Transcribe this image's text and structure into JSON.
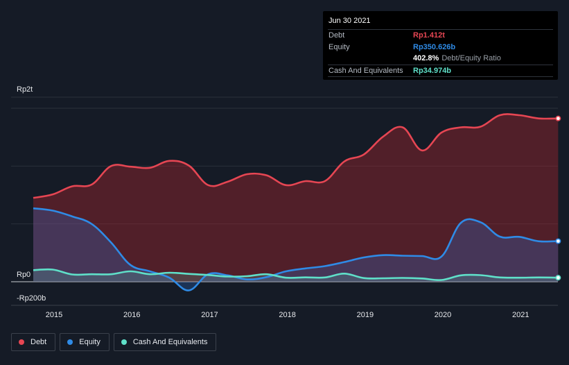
{
  "colors": {
    "debt": "#e64653",
    "equity": "#2f8be6",
    "cash": "#5fe0c9",
    "grid": "#2a303b",
    "tick_text": "#e8eaed"
  },
  "tooltip": {
    "date": "Jun 30 2021",
    "rows": [
      {
        "label": "Debt",
        "value": "Rp1.412t",
        "color": "#e64653"
      },
      {
        "label": "Equity",
        "value": "Rp350.626b",
        "color": "#2f8be6"
      },
      {
        "label": "",
        "value": "402.8%",
        "suffix": "Debt/Equity Ratio",
        "color": "#ffffff"
      },
      {
        "label": "Cash And Equivalents",
        "value": "Rp34.974b",
        "color": "#5fe0c9"
      }
    ]
  },
  "legend": [
    {
      "label": "Debt",
      "color": "#e64653"
    },
    {
      "label": "Equity",
      "color": "#2f8be6"
    },
    {
      "label": "Cash And Equivalents",
      "color": "#5fe0c9"
    }
  ],
  "chart_data": {
    "type": "area",
    "title": "",
    "xlabel": "",
    "ylabel": "",
    "xlim": [
      2014.5,
      2021.5
    ],
    "ylim": [
      -200,
      1600
    ],
    "x_ticks": [
      2015,
      2016,
      2017,
      2018,
      2019,
      2020,
      2021
    ],
    "x_tick_labels": [
      "2015",
      "2016",
      "2017",
      "2018",
      "2019",
      "2020",
      "2021"
    ],
    "y_ticks": [
      {
        "value": 1600,
        "label": "Rp2t"
      },
      {
        "value": 0,
        "label": "Rp0"
      },
      {
        "value": -200,
        "label": "-Rp200b"
      }
    ],
    "gridlines": [
      1500,
      1000,
      500,
      0
    ],
    "units": "Rp billions",
    "series": [
      {
        "name": "Debt",
        "points": [
          [
            2014.75,
            725
          ],
          [
            2015.0,
            755
          ],
          [
            2015.25,
            825
          ],
          [
            2015.5,
            840
          ],
          [
            2015.75,
            1000
          ],
          [
            2016.0,
            995
          ],
          [
            2016.25,
            985
          ],
          [
            2016.5,
            1045
          ],
          [
            2016.75,
            1005
          ],
          [
            2017.0,
            835
          ],
          [
            2017.25,
            865
          ],
          [
            2017.5,
            930
          ],
          [
            2017.75,
            920
          ],
          [
            2018.0,
            835
          ],
          [
            2018.25,
            870
          ],
          [
            2018.5,
            870
          ],
          [
            2018.75,
            1040
          ],
          [
            2019.0,
            1100
          ],
          [
            2019.25,
            1255
          ],
          [
            2019.5,
            1335
          ],
          [
            2019.75,
            1135
          ],
          [
            2020.0,
            1290
          ],
          [
            2020.25,
            1335
          ],
          [
            2020.5,
            1340
          ],
          [
            2020.75,
            1440
          ],
          [
            2021.0,
            1440
          ],
          [
            2021.25,
            1412
          ],
          [
            2021.5,
            1412
          ]
        ]
      },
      {
        "name": "Equity",
        "points": [
          [
            2014.75,
            635
          ],
          [
            2015.0,
            615
          ],
          [
            2015.25,
            565
          ],
          [
            2015.5,
            500
          ],
          [
            2015.75,
            340
          ],
          [
            2016.0,
            145
          ],
          [
            2016.25,
            90
          ],
          [
            2016.5,
            35
          ],
          [
            2016.75,
            -75
          ],
          [
            2017.0,
            65
          ],
          [
            2017.25,
            55
          ],
          [
            2017.5,
            20
          ],
          [
            2017.75,
            40
          ],
          [
            2018.0,
            90
          ],
          [
            2018.25,
            115
          ],
          [
            2018.5,
            135
          ],
          [
            2018.75,
            170
          ],
          [
            2019.0,
            210
          ],
          [
            2019.25,
            230
          ],
          [
            2019.5,
            225
          ],
          [
            2019.75,
            222
          ],
          [
            2020.0,
            218
          ],
          [
            2020.25,
            510
          ],
          [
            2020.5,
            515
          ],
          [
            2020.75,
            390
          ],
          [
            2021.0,
            388
          ],
          [
            2021.25,
            350
          ],
          [
            2021.5,
            351
          ]
        ]
      },
      {
        "name": "Cash And Equivalents",
        "points": [
          [
            2014.75,
            100
          ],
          [
            2015.0,
            105
          ],
          [
            2015.25,
            63
          ],
          [
            2015.5,
            65
          ],
          [
            2015.75,
            65
          ],
          [
            2016.0,
            90
          ],
          [
            2016.25,
            65
          ],
          [
            2016.5,
            78
          ],
          [
            2016.75,
            68
          ],
          [
            2017.0,
            58
          ],
          [
            2017.25,
            45
          ],
          [
            2017.5,
            48
          ],
          [
            2017.75,
            65
          ],
          [
            2018.0,
            35
          ],
          [
            2018.25,
            38
          ],
          [
            2018.5,
            37
          ],
          [
            2018.75,
            70
          ],
          [
            2019.0,
            32
          ],
          [
            2019.25,
            30
          ],
          [
            2019.5,
            33
          ],
          [
            2019.75,
            28
          ],
          [
            2020.0,
            15
          ],
          [
            2020.25,
            55
          ],
          [
            2020.5,
            57
          ],
          [
            2020.75,
            37
          ],
          [
            2021.0,
            35
          ],
          [
            2021.25,
            37
          ],
          [
            2021.5,
            35
          ]
        ]
      }
    ]
  }
}
